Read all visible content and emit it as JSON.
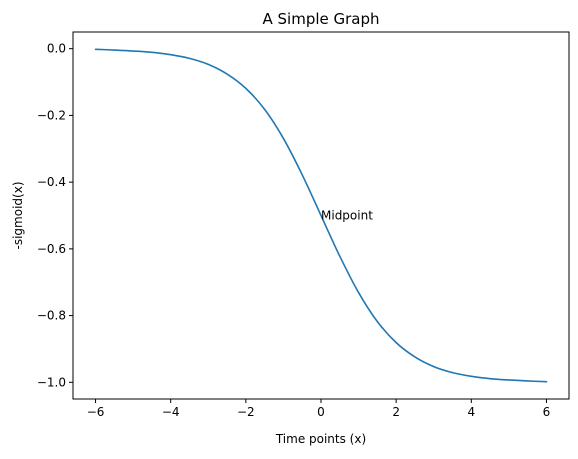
{
  "chart_data": {
    "type": "line",
    "title": "A Simple Graph",
    "xlabel": "Time points (x)",
    "ylabel": "-sigmoid(x)",
    "xlim": [
      -6.6,
      6.6
    ],
    "ylim": [
      -1.05,
      0.05
    ],
    "x_ticks": [
      -6,
      -4,
      -2,
      0,
      2,
      4,
      6
    ],
    "x_tick_labels": [
      "−6",
      "−4",
      "−2",
      "0",
      "2",
      "4",
      "6"
    ],
    "y_ticks": [
      0.0,
      -0.2,
      -0.4,
      -0.6,
      -0.8,
      -1.0
    ],
    "y_tick_labels": [
      "0.0",
      "−0.2",
      "−0.4",
      "−0.6",
      "−0.8",
      "−1.0"
    ],
    "grid": false,
    "line_color": "#1f77b4",
    "series": [
      {
        "x": [
          -6,
          -5.5,
          -5,
          -4.5,
          -4,
          -3.5,
          -3,
          -2.5,
          -2,
          -1.5,
          -1,
          -0.5,
          0,
          0.5,
          1,
          1.5,
          2,
          2.5,
          3,
          3.5,
          4,
          4.5,
          5,
          5.5,
          6
        ],
        "y": [
          -0.002,
          -0.004,
          -0.007,
          -0.011,
          -0.018,
          -0.029,
          -0.047,
          -0.076,
          -0.119,
          -0.182,
          -0.269,
          -0.378,
          -0.5,
          -0.622,
          -0.731,
          -0.818,
          -0.881,
          -0.924,
          -0.953,
          -0.971,
          -0.982,
          -0.989,
          -0.993,
          -0.996,
          -0.998
        ]
      }
    ],
    "annotations": [
      {
        "text": "Midpoint",
        "x": 0,
        "y": -0.5
      }
    ]
  }
}
